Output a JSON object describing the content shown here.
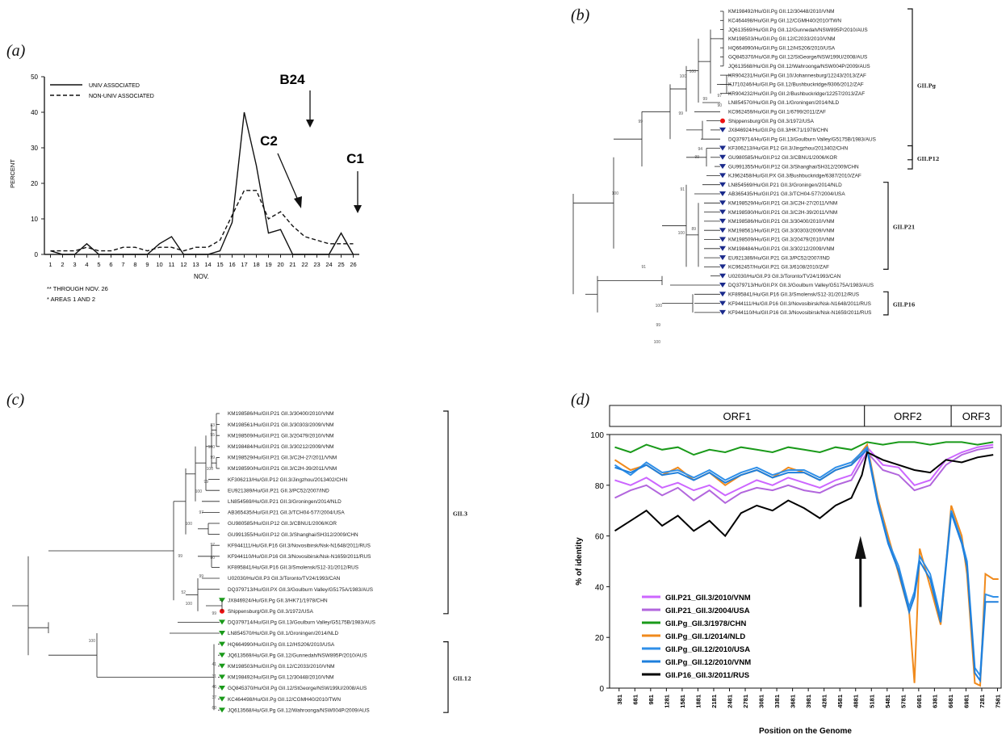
{
  "figure": {
    "panel_labels": [
      "(a)",
      "(b)",
      "(c)",
      "(d)"
    ],
    "chart_data": [
      {
        "type": "line",
        "panel": "(a)",
        "ylabel": "PERCENT",
        "xlabel": "NOV.",
        "x": [
          1,
          2,
          3,
          4,
          5,
          6,
          7,
          8,
          9,
          10,
          11,
          12,
          13,
          14,
          15,
          16,
          17,
          18,
          19,
          20,
          21,
          22,
          23,
          24,
          25,
          26
        ],
        "yticks": [
          0,
          10,
          20,
          30,
          40,
          50
        ],
        "ylim": [
          0,
          50
        ],
        "series": [
          {
            "name": "UNIV ASSOCIATED",
            "style": "solid",
            "values": [
              1,
              0,
              0,
              3,
              0,
              0,
              0,
              0,
              0,
              3,
              5,
              0,
              0,
              0,
              1,
              9,
              40,
              25,
              6,
              7,
              0,
              0,
              0,
              0,
              6,
              0
            ]
          },
          {
            "name": "NON-UNIV ASSOCIATED",
            "style": "dashed",
            "values": [
              1,
              1,
              1,
              2,
              1,
              1,
              2,
              2,
              1,
              2,
              2,
              1,
              2,
              2,
              4,
              11,
              18,
              18,
              10,
              12,
              8,
              5,
              4,
              3,
              3,
              3
            ]
          }
        ],
        "annotations": [
          {
            "text": "B24",
            "x": 17
          },
          {
            "text": "C2",
            "x": 16
          },
          {
            "text": "C1",
            "x": 19
          }
        ],
        "footnotes": [
          "** THROUGH NOV. 26",
          "* AREAS 1 AND 2"
        ]
      },
      {
        "type": "line",
        "panel": "(d)",
        "ylabel": "% of identity",
        "xlabel": "Position on the Genome",
        "ylim": [
          0,
          100
        ],
        "yticks": [
          0,
          20,
          40,
          60,
          80,
          100
        ],
        "xticks": [
          381,
          681,
          981,
          1281,
          1581,
          1881,
          2181,
          2481,
          2781,
          3081,
          3381,
          3681,
          3981,
          4281,
          4581,
          4881,
          5181,
          5481,
          5781,
          6081,
          6381,
          6681,
          6981,
          7281,
          7581
        ],
        "xlim": [
          200,
          7650
        ],
        "orfs": [
          {
            "label": "ORF1",
            "start": 200,
            "end": 5050
          },
          {
            "label": "ORF2",
            "start": 5050,
            "end": 6700
          },
          {
            "label": "ORF3",
            "start": 6700,
            "end": 7650
          }
        ],
        "arrow_at": 5081,
        "series": [
          {
            "name": "GII.P21_GII.3/2010/VNM",
            "color": "#cc66ff",
            "x": [
              300,
              600,
              900,
              1200,
              1500,
              1800,
              2100,
              2400,
              2700,
              3000,
              3300,
              3600,
              3900,
              4200,
              4500,
              4800,
              5100,
              5400,
              5700,
              6000,
              6300,
              6600,
              6900,
              7200,
              7500
            ],
            "y": [
              82,
              80,
              83,
              79,
              81,
              78,
              80,
              76,
              79,
              82,
              80,
              83,
              81,
              79,
              82,
              84,
              95,
              88,
              87,
              80,
              82,
              90,
              93,
              95,
              96
            ]
          },
          {
            "name": "GII.P21_GII.3/2004/USA",
            "color": "#b266dd",
            "x": [
              300,
              600,
              900,
              1200,
              1500,
              1800,
              2100,
              2400,
              2700,
              3000,
              3300,
              3600,
              3900,
              4200,
              4500,
              4800,
              5100,
              5400,
              5700,
              6000,
              6300,
              6600,
              6900,
              7200,
              7500
            ],
            "y": [
              75,
              78,
              80,
              76,
              79,
              74,
              78,
              73,
              77,
              79,
              78,
              80,
              78,
              77,
              80,
              82,
              93,
              86,
              84,
              78,
              80,
              88,
              92,
              94,
              95
            ]
          },
          {
            "name": "GII.Pg_GII.3/1978/CHN",
            "color": "#1a9a1a",
            "x": [
              300,
              600,
              900,
              1200,
              1500,
              1800,
              2100,
              2400,
              2700,
              3000,
              3300,
              3600,
              3900,
              4200,
              4500,
              4800,
              5100,
              5400,
              5700,
              6000,
              6300,
              6600,
              6900,
              7200,
              7500
            ],
            "y": [
              95,
              93,
              96,
              94,
              95,
              92,
              94,
              93,
              95,
              94,
              93,
              95,
              94,
              93,
              95,
              94,
              97,
              96,
              97,
              97,
              96,
              97,
              97,
              96,
              97
            ]
          },
          {
            "name": "GII.Pg_GII.1/2014/NLD",
            "color": "#f08a1c",
            "x": [
              300,
              600,
              900,
              1200,
              1500,
              1800,
              2100,
              2400,
              2700,
              3000,
              3300,
              3600,
              3900,
              4200,
              4500,
              4800,
              5100,
              5300,
              5500,
              5700,
              5900,
              6000,
              6100,
              6300,
              6500,
              6700,
              6900,
              7000,
              7150,
              7250,
              7350,
              7500,
              7600
            ],
            "y": [
              90,
              86,
              88,
              84,
              87,
              82,
              85,
              80,
              84,
              86,
              83,
              87,
              85,
              82,
              86,
              88,
              96,
              75,
              60,
              45,
              30,
              2,
              55,
              40,
              25,
              72,
              60,
              45,
              2,
              1,
              45,
              43,
              43
            ]
          },
          {
            "name": "GII.Pg_GII.12/2010/USA",
            "color": "#2f8fe8",
            "x": [
              300,
              600,
              900,
              1200,
              1500,
              1800,
              2100,
              2400,
              2700,
              3000,
              3300,
              3600,
              3900,
              4200,
              4500,
              4800,
              5100,
              5300,
              5500,
              5700,
              5900,
              6000,
              6100,
              6300,
              6500,
              6700,
              6900,
              7000,
              7150,
              7250,
              7350,
              7500,
              7600
            ],
            "y": [
              88,
              84,
              89,
              85,
              86,
              83,
              86,
              82,
              85,
              87,
              84,
              86,
              86,
              83,
              87,
              89,
              95,
              74,
              58,
              48,
              32,
              38,
              52,
              45,
              28,
              70,
              58,
              50,
              8,
              5,
              37,
              36,
              36
            ]
          },
          {
            "name": "GII.Pg_GII.12/2010/VNM",
            "color": "#1e7fdc",
            "x": [
              300,
              600,
              900,
              1200,
              1500,
              1800,
              2100,
              2400,
              2700,
              3000,
              3300,
              3600,
              3900,
              4200,
              4500,
              4800,
              5100,
              5300,
              5500,
              5700,
              5900,
              6000,
              6100,
              6300,
              6500,
              6700,
              6900,
              7000,
              7150,
              7250,
              7350,
              7500,
              7600
            ],
            "y": [
              87,
              85,
              88,
              84,
              85,
              82,
              85,
              81,
              84,
              86,
              83,
              85,
              85,
              82,
              86,
              88,
              94,
              73,
              57,
              46,
              30,
              36,
              50,
              43,
              26,
              69,
              57,
              48,
              6,
              3,
              34,
              34,
              34
            ]
          },
          {
            "name": "GII.P16_GII.3/2011/RUS",
            "color": "#000000",
            "x": [
              300,
              600,
              900,
              1200,
              1500,
              1800,
              2100,
              2400,
              2700,
              3000,
              3300,
              3600,
              3900,
              4200,
              4500,
              4800,
              5000,
              5100,
              5400,
              5700,
              6000,
              6300,
              6600,
              6900,
              7200,
              7500
            ],
            "y": [
              62,
              66,
              70,
              64,
              68,
              62,
              66,
              60,
              69,
              72,
              70,
              74,
              71,
              67,
              72,
              75,
              84,
              93,
              90,
              88,
              86,
              85,
              90,
              89,
              91,
              92
            ]
          }
        ]
      }
    ],
    "tree_b": {
      "leaves": [
        "KM198492/Hu/GII.Pg GII.12/30448/2010/VNM",
        "KC464498/Hu/GII.Pg GII.12/CGMH40/2010/TWN",
        "JQ613569/Hu/GII.Pg GII.12/Gunnedah/NSW895P/2010/AUS",
        "KM198503/Hu/GII.Pg GII.12/C2033/2010/VNM",
        "HQ664990/Hu/GII.Pg GII.12/HS206/2010/USA",
        "GQ845370/Hu/GII.Pg GII.12/StGeorge/NSW199U/2008/AUS",
        "JQ613568/Hu/GII.Pg GII.12/Wahroonga/NSW004P/2009/AUS",
        "KR904231/Hu/GII.Pg GII.10/Johannesburg/12243/2013/ZAF",
        "KJ710246/Hu/GII.Pg GII.12/Bushbuckridge/9306/2012/ZAF",
        "KR904232/Hu/GII.Pg GII.2/Bushbuckridge/12257/2013/ZAF",
        "LN854570/Hu/GII.Pg GII.1/Groningen/2014/NLD",
        "KC962459/Hu/GII.Pg GII.1/6799/2011/ZAF",
        "Shippensburg/GII.Pg GII.3/1972/USA",
        "JX846924/Hu/GII.Pg GII.3/HK71/1978/CHN",
        "DQ379714/Hu/GII.Pg GII.13/Goulburn Valley/G5175B/1983/AUS",
        "KF306213/Hu/GII.P12 GII.3/Jingzhou/2013402/CHN",
        "GU980585/Hu/GII.P12 GII.3/CBNU1/2006/KOR",
        "GU991355/Hu/GII.P12 GII.3/Shanghai/SH312/2009/CHN",
        "KJ962458/Hu/GII.PX GII.3/Bushbuckridge/6387/2010/ZAF",
        "LN854569/Hu/GII.P21 GII.3/Groningen/2014/NLD",
        "AB365435/Hu/GII.P21 GII.3/TCH04-577/2004/USA",
        "KM198529/Hu/GII.P21 GII.3/C2H-27/2011/VNM",
        "KM198590/Hu/GII.P21 GII.3/C2H-39/2011/VNM",
        "KM198586/Hu/GII.P21 GII.3/30400/2010/VNM",
        "KM198561/Hu/GII.P21 GII.3/30303/2009/VNM",
        "KM198509/Hu/GII.P21 GII.3/20479/2010/VNM",
        "KM198484/Hu/GII.P21 GII.3/30212/2009/VNM",
        "EU921389/Hu/GII.P21 GII.3/PC52/2007/IND",
        "KC962457/Hu/GII.P21 GII.3/6108/2010/ZAF",
        "U02030/Hu/GII.P3 GII.3/Toronto/TV24/1993/CAN",
        "DQ379713/Hu/GII.PX GII.3/Goulburn Valley/G5175A/1983/AUS",
        "KF895841/Hu/GII.P16 GII.3/Smolensk/S12-31/2012/RUS",
        "KF944111/Hu/GII.P16 GII.3/Novosibirsk/Nsk-N1648/2011/RUS",
        "KF944110/Hu/GII.P16 GII.3/Novosibirsk/Nsk-N1659/2011/RUS"
      ],
      "clades": [
        "GII.Pg",
        "GII.P12",
        "GII.P21",
        "GII.P16"
      ],
      "bootstrap": [
        "99",
        "100",
        "90",
        "97",
        "99",
        "100",
        "99",
        "94",
        "99",
        "91",
        "100",
        "100",
        "89",
        "91",
        "99",
        "100",
        "100"
      ]
    },
    "tree_c": {
      "leaves": [
        "KM198586/Hu/GII.P21 GII.3/30400/2010/VNM",
        "KM198561/Hu/GII.P21 GII.3/30303/2009/VNM",
        "KM198509/Hu/GII.P21 GII.3/20479/2010/VNM",
        "KM198484/Hu/GII.P21 GII.3/30212/2009/VNM",
        "KM198529/Hu/GII.P21 GII.3/C2H-27/2011/VNM",
        "KM198590/Hu/GII.P21 GII.3/C2H-39/2011/VNM",
        "KF306213/Hu/GII.P12 GII.3/Jingzhou/2013402/CHN",
        "EU921389/Hu/GII.P21 GII.3/PC52/2007/IND",
        "LN854569/Hu/GII.P21 GII.3/Groningen/2014/NLD",
        "AB365435/Hu/GII.P21 GII.3/TCH04-577/2004/USA",
        "GU980585/Hu/GII.P12 GII.3/CBNU1/2006/KOR",
        "GU991355/Hu/GII.P12 GII.3/Shanghai/SH312/2009/CHN",
        "KF944111/Hu/GII.P16 GII.3/Novosibirsk/Nsk-N1648/2011/RUS",
        "KF944110/Hu/GII.P16 GII.3/Novosibirsk/Nsk-N1659/2011/RUS",
        "KF895841/Hu/GII.P16 GII.3/Smolensk/S12-31/2012/RUS",
        "U02030/Hu/GII.P3 GII.3/Toronto/TV24/1993/CAN",
        "DQ379713/Hu/GII.PX GII.3/Goulburn Valley/G5175A/1983/AUS",
        "JX846924/Hu/GII.Pg GII.3/HK71/1978/CHN",
        "Shippensburg/GII.Pg GII.3/1972/USA",
        "DQ379714/Hu/GII.Pg GII.13/Goulburn Valley/G5175B/1983/AUS",
        "LN854570/Hu/GII.Pg GII.1/Groningen/2014/NLD",
        "HQ664990/Hu/GII.Pg GII.12/HS206/2010/USA",
        "JQ613569/Hu/GII.Pg GII.12/Gunnedah/NSW895P/2010/AUS",
        "KM198503/Hu/GII.Pg GII.12/C2033/2010/VNM",
        "KM198492/Hu/GII.Pg GII.12/30448/2010/VNM",
        "GQ845370/Hu/GII.Pg GII.12/StGeorge/NSW199U/2008/AUS",
        "KC464498/Hu/GII.Pg GII.12/CGMH40/2010/TWN",
        "JQ613568/Hu/GII.Pg GII.12/Wahroonga/NSW004P/2009/AUS"
      ],
      "clades": [
        "GII.3",
        "GII.12"
      ],
      "bootstrap": [
        "83",
        "55",
        "100",
        "99",
        "100",
        "99",
        "100",
        "97",
        "100",
        "99",
        "97",
        "80",
        "99",
        "52",
        "100",
        "99",
        "100",
        "41",
        "31",
        "46",
        "37",
        "60"
      ]
    }
  }
}
